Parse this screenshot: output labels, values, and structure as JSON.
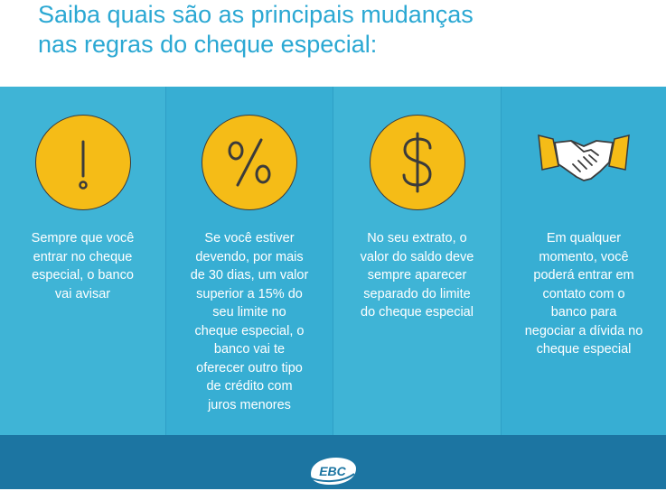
{
  "header": {
    "title_lines": [
      "Saiba quais são as principais mudanças",
      "nas regras do cheque especial:"
    ]
  },
  "columns": [
    {
      "icon": "exclamation-icon",
      "lines": [
        "Sempre que você",
        "entrar no cheque",
        "especial, o banco",
        "vai avisar"
      ]
    },
    {
      "icon": "percent-icon",
      "lines": [
        "Se você estiver",
        "devendo, por mais",
        "de 30 dias, um valor",
        "superior a 15% do",
        "seu limite no",
        "cheque especial, o",
        "banco vai te",
        "oferecer outro tipo",
        "de crédito com",
        "juros menores"
      ]
    },
    {
      "icon": "dollar-icon",
      "lines": [
        "No seu extrato, o",
        "valor do saldo deve",
        "sempre aparecer",
        "separado do limite",
        "do cheque especial"
      ]
    },
    {
      "icon": "handshake-icon",
      "lines": [
        "Em qualquer",
        "momento, você",
        "poderá entrar em",
        "contato com o",
        "banco para",
        "negociar a dívida no",
        "cheque especial"
      ]
    }
  ],
  "footer": {
    "logo_text": "EBC"
  },
  "colors": {
    "title": "#2ba8d3",
    "panel": "#3fb4d6",
    "panel_alt": "#37aed3",
    "icon_fill": "#f5bc17",
    "footer": "#1c75a2"
  }
}
